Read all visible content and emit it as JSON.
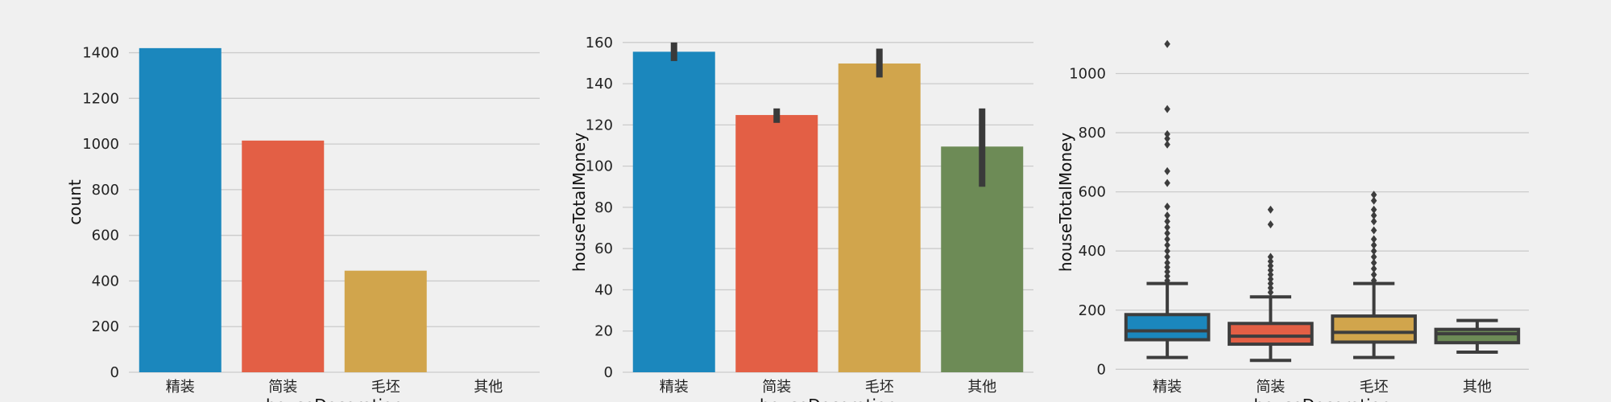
{
  "chart_data": [
    {
      "type": "bar",
      "categories": [
        "精装",
        "简装",
        "毛坯",
        "其他"
      ],
      "values": [
        1420,
        1015,
        445,
        0
      ],
      "xlabel": "houseDecoration",
      "ylabel": "count",
      "ylim": [
        0,
        1490
      ],
      "yticks": [
        0,
        200,
        400,
        600,
        800,
        1000,
        1200,
        1400
      ],
      "grid": true,
      "colors": [
        "#1b87bd",
        "#e35f45",
        "#d1a54c",
        "#6d8b56"
      ]
    },
    {
      "type": "bar",
      "categories": [
        "精装",
        "简装",
        "毛坯",
        "其他"
      ],
      "values": [
        155.5,
        124.8,
        149.8,
        109.5
      ],
      "error_bars": [
        [
          151,
          160
        ],
        [
          121,
          128
        ],
        [
          143,
          157
        ],
        [
          90,
          128
        ]
      ],
      "xlabel": "houseDecoration",
      "ylabel": "houseTotalMoney",
      "ylim": [
        0,
        165
      ],
      "yticks": [
        0,
        20,
        40,
        60,
        80,
        100,
        120,
        140,
        160
      ],
      "grid": true,
      "colors": [
        "#1b87bd",
        "#e35f45",
        "#d1a54c",
        "#6d8b56"
      ]
    },
    {
      "type": "box",
      "categories": [
        "精装",
        "简装",
        "毛坯",
        "其他"
      ],
      "boxes": [
        {
          "whisker_low": 40,
          "q1": 100,
          "median": 130,
          "q3": 185,
          "whisker_high": 290,
          "outliers": [
            300,
            315,
            330,
            345,
            360,
            380,
            400,
            420,
            440,
            460,
            480,
            500,
            520,
            550,
            630,
            670,
            760,
            780,
            795,
            880,
            1100
          ]
        },
        {
          "whisker_low": 30,
          "q1": 85,
          "median": 112,
          "q3": 155,
          "whisker_high": 245,
          "outliers": [
            260,
            275,
            290,
            305,
            320,
            335,
            350,
            365,
            380,
            490,
            540
          ]
        },
        {
          "whisker_low": 40,
          "q1": 92,
          "median": 125,
          "q3": 180,
          "whisker_high": 290,
          "outliers": [
            300,
            320,
            340,
            360,
            380,
            400,
            420,
            440,
            470,
            500,
            520,
            540,
            570,
            590
          ]
        },
        {
          "whisker_low": 58,
          "q1": 90,
          "median": 120,
          "q3": 135,
          "whisker_high": 165,
          "outliers": []
        }
      ],
      "xlabel": "houseDecoration",
      "ylabel": "houseTotalMoney",
      "ylim": [
        -10,
        1140
      ],
      "yticks": [
        0,
        200,
        400,
        600,
        800,
        1000
      ],
      "grid": true,
      "colors": [
        "#1b87bd",
        "#e35f45",
        "#d1a54c",
        "#6d8b56"
      ]
    }
  ]
}
